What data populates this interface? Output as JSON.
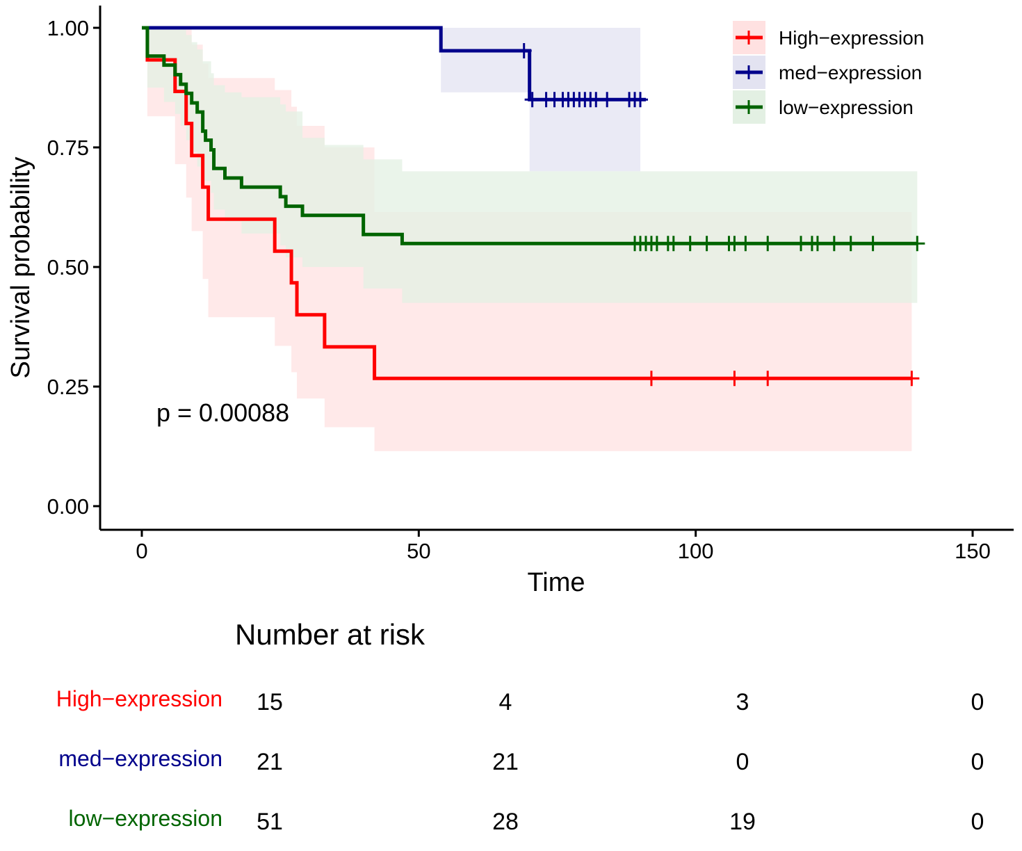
{
  "chart_data": {
    "type": "line",
    "subtype": "kaplan-meier",
    "xlabel": "Time",
    "ylabel": "Survival probability",
    "xlim": [
      -7.5,
      157
    ],
    "ylim": [
      -0.05,
      1.05
    ],
    "x_ticks": [
      0,
      50,
      100,
      150
    ],
    "y_ticks": [
      0.0,
      0.25,
      0.5,
      0.75,
      1.0
    ],
    "x_tick_labels": [
      "0",
      "50",
      "100",
      "150"
    ],
    "y_tick_labels": [
      "0.00",
      "0.25",
      "0.50",
      "0.75",
      "1.00"
    ],
    "grid": false,
    "legend_position": "top-right",
    "annotation": "p = 0.00088",
    "series": [
      {
        "name": "High−expression",
        "color": "#ff0000",
        "fill": "#ffe1e1",
        "steps": [
          [
            0,
            1.0
          ],
          [
            1,
            0.933
          ],
          [
            6,
            0.867
          ],
          [
            8,
            0.8
          ],
          [
            9,
            0.733
          ],
          [
            11,
            0.667
          ],
          [
            12,
            0.6
          ],
          [
            24,
            0.533
          ],
          [
            27,
            0.467
          ],
          [
            28,
            0.4
          ],
          [
            33,
            0.333
          ],
          [
            42,
            0.267
          ],
          [
            139,
            0.267
          ]
        ],
        "ci_upper": [
          [
            0,
            1.0
          ],
          [
            6,
            1.0
          ],
          [
            8,
            1.0
          ],
          [
            9,
            0.965
          ],
          [
            11,
            0.925
          ],
          [
            12,
            0.895
          ],
          [
            24,
            0.87
          ],
          [
            27,
            0.835
          ],
          [
            28,
            0.795
          ],
          [
            33,
            0.75
          ],
          [
            42,
            0.615
          ],
          [
            139,
            0.615
          ]
        ],
        "ci_lower": [
          [
            0,
            1.0
          ],
          [
            1,
            0.815
          ],
          [
            6,
            0.715
          ],
          [
            8,
            0.645
          ],
          [
            9,
            0.575
          ],
          [
            11,
            0.475
          ],
          [
            12,
            0.395
          ],
          [
            24,
            0.335
          ],
          [
            27,
            0.28
          ],
          [
            28,
            0.225
          ],
          [
            33,
            0.165
          ],
          [
            42,
            0.115
          ],
          [
            139,
            0.115
          ]
        ],
        "censor_times": [
          92,
          107,
          113,
          139
        ],
        "censor_value": 0.267
      },
      {
        "name": "med−expression",
        "color": "#00008b",
        "fill": "#e3e3f1",
        "steps": [
          [
            0,
            1.0
          ],
          [
            54,
            0.952
          ],
          [
            70,
            0.85
          ],
          [
            91,
            0.85
          ]
        ],
        "ci_upper": [
          [
            0,
            1.0
          ],
          [
            90,
            1.0
          ]
        ],
        "ci_lower": [
          [
            0,
            1.0
          ],
          [
            54,
            0.865
          ],
          [
            70,
            0.7
          ],
          [
            90,
            0.7
          ]
        ],
        "censor_times": [
          69,
          70.5,
          73,
          74.5,
          76,
          77,
          78,
          79,
          80,
          81,
          82,
          84,
          88,
          89,
          90
        ],
        "censor_values": [
          0.952,
          0.85,
          0.85,
          0.85,
          0.85,
          0.85,
          0.85,
          0.85,
          0.85,
          0.85,
          0.85,
          0.85,
          0.85,
          0.85,
          0.85
        ]
      },
      {
        "name": "low−expression",
        "color": "#006400",
        "fill": "#e3f0e3",
        "steps": [
          [
            0,
            1.0
          ],
          [
            1,
            0.941
          ],
          [
            4,
            0.922
          ],
          [
            6,
            0.902
          ],
          [
            7,
            0.882
          ],
          [
            8,
            0.863
          ],
          [
            9,
            0.843
          ],
          [
            10,
            0.824
          ],
          [
            11,
            0.784
          ],
          [
            11.5,
            0.765
          ],
          [
            12.5,
            0.745
          ],
          [
            13,
            0.706
          ],
          [
            15,
            0.686
          ],
          [
            18,
            0.667
          ],
          [
            25,
            0.647
          ],
          [
            26,
            0.627
          ],
          [
            29,
            0.608
          ],
          [
            40,
            0.568
          ],
          [
            47,
            0.549
          ],
          [
            140,
            0.549
          ]
        ],
        "ci_upper": [
          [
            0,
            1.0
          ],
          [
            7,
            1.0
          ],
          [
            8,
            0.985
          ],
          [
            9,
            0.97
          ],
          [
            10,
            0.955
          ],
          [
            11,
            0.93
          ],
          [
            12.5,
            0.905
          ],
          [
            13,
            0.88
          ],
          [
            15,
            0.865
          ],
          [
            18,
            0.855
          ],
          [
            25,
            0.84
          ],
          [
            26,
            0.825
          ],
          [
            29,
            0.77
          ],
          [
            33,
            0.755
          ],
          [
            40,
            0.725
          ],
          [
            47,
            0.7
          ],
          [
            140,
            0.7
          ]
        ],
        "ci_lower": [
          [
            0,
            1.0
          ],
          [
            1,
            0.875
          ],
          [
            4,
            0.845
          ],
          [
            6,
            0.82
          ],
          [
            7,
            0.795
          ],
          [
            8,
            0.765
          ],
          [
            9,
            0.74
          ],
          [
            10,
            0.71
          ],
          [
            11,
            0.68
          ],
          [
            12.5,
            0.655
          ],
          [
            13,
            0.62
          ],
          [
            15,
            0.595
          ],
          [
            18,
            0.57
          ],
          [
            25,
            0.545
          ],
          [
            26,
            0.52
          ],
          [
            29,
            0.5
          ],
          [
            40,
            0.455
          ],
          [
            47,
            0.425
          ],
          [
            140,
            0.425
          ]
        ],
        "censor_times": [
          89,
          90,
          91,
          92,
          93,
          95,
          96,
          99,
          102,
          106,
          107,
          109,
          113,
          119,
          121,
          122,
          125,
          128,
          132,
          140
        ],
        "censor_value": 0.549
      }
    ],
    "risk_table": {
      "title": "Number at risk",
      "times": [
        0,
        50,
        100,
        150
      ],
      "rows": [
        {
          "name": "High−expression",
          "color": "#ff0000",
          "values": [
            "15",
            "4",
            "3",
            "0"
          ]
        },
        {
          "name": "med−expression",
          "color": "#00008b",
          "values": [
            "21",
            "21",
            "0",
            "0"
          ]
        },
        {
          "name": "low−expression",
          "color": "#006400",
          "values": [
            "51",
            "28",
            "19",
            "0"
          ]
        }
      ]
    }
  }
}
